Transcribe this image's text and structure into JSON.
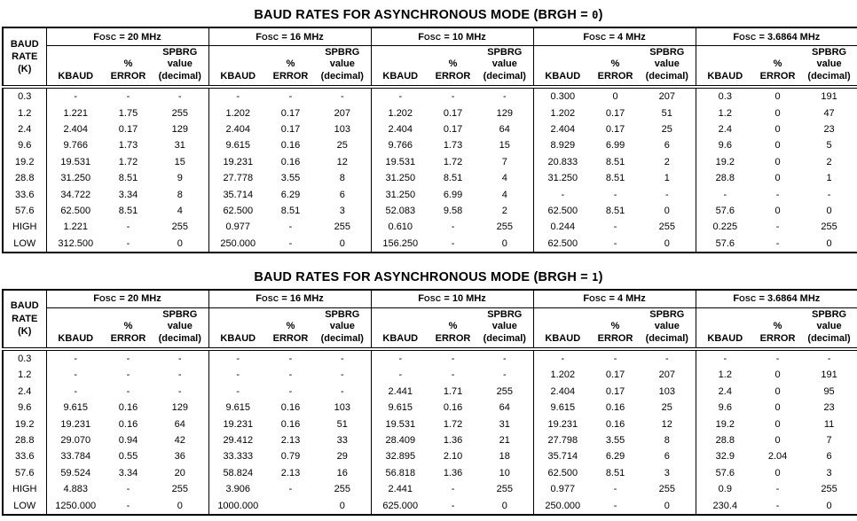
{
  "tables": [
    {
      "id": "brgh0",
      "title_main": "BAUD RATES FOR ASYNCHRONOUS MODE (BRGH = ",
      "title_value": "0",
      "title_close": ")",
      "corner_header": "BAUD\nRATE\n(K)",
      "group_headers": [
        "FOSC = 20 MHz",
        "FOSC = 16 MHz",
        "FOSC = 10 MHz",
        "FOSC = 4 MHz",
        "FOSC = 3.6864 MHz"
      ],
      "sub_headers": [
        "KBAUD",
        "%\nERROR",
        "SPBRG\nvalue\n(decimal)"
      ],
      "rows": [
        {
          "baud": "0.3",
          "cells": [
            "-",
            "-",
            "-",
            "-",
            "-",
            "-",
            "-",
            "-",
            "-",
            "0.300",
            "0",
            "207",
            "0.3",
            "0",
            "191"
          ]
        },
        {
          "baud": "1.2",
          "cells": [
            "1.221",
            "1.75",
            "255",
            "1.202",
            "0.17",
            "207",
            "1.202",
            "0.17",
            "129",
            "1.202",
            "0.17",
            "51",
            "1.2",
            "0",
            "47"
          ]
        },
        {
          "baud": "2.4",
          "cells": [
            "2.404",
            "0.17",
            "129",
            "2.404",
            "0.17",
            "103",
            "2.404",
            "0.17",
            "64",
            "2.404",
            "0.17",
            "25",
            "2.4",
            "0",
            "23"
          ]
        },
        {
          "baud": "9.6",
          "cells": [
            "9.766",
            "1.73",
            "31",
            "9.615",
            "0.16",
            "25",
            "9.766",
            "1.73",
            "15",
            "8.929",
            "6.99",
            "6",
            "9.6",
            "0",
            "5"
          ]
        },
        {
          "baud": "19.2",
          "cells": [
            "19.531",
            "1.72",
            "15",
            "19.231",
            "0.16",
            "12",
            "19.531",
            "1.72",
            "7",
            "20.833",
            "8.51",
            "2",
            "19.2",
            "0",
            "2"
          ]
        },
        {
          "baud": "28.8",
          "cells": [
            "31.250",
            "8.51",
            "9",
            "27.778",
            "3.55",
            "8",
            "31.250",
            "8.51",
            "4",
            "31.250",
            "8.51",
            "1",
            "28.8",
            "0",
            "1"
          ]
        },
        {
          "baud": "33.6",
          "cells": [
            "34.722",
            "3.34",
            "8",
            "35.714",
            "6.29",
            "6",
            "31.250",
            "6.99",
            "4",
            "-",
            "-",
            "-",
            "-",
            "-",
            "-"
          ]
        },
        {
          "baud": "57.6",
          "cells": [
            "62.500",
            "8.51",
            "4",
            "62.500",
            "8.51",
            "3",
            "52.083",
            "9.58",
            "2",
            "62.500",
            "8.51",
            "0",
            "57.6",
            "0",
            "0"
          ]
        },
        {
          "baud": "HIGH",
          "cells": [
            "1.221",
            "-",
            "255",
            "0.977",
            "-",
            "255",
            "0.610",
            "-",
            "255",
            "0.244",
            "-",
            "255",
            "0.225",
            "-",
            "255"
          ]
        },
        {
          "baud": "LOW",
          "cells": [
            "312.500",
            "-",
            "0",
            "250.000",
            "-",
            "0",
            "156.250",
            "-",
            "0",
            "62.500",
            "-",
            "0",
            "57.6",
            "-",
            "0"
          ]
        }
      ]
    },
    {
      "id": "brgh1",
      "title_main": "BAUD RATES FOR ASYNCHRONOUS MODE (BRGH = ",
      "title_value": "1",
      "title_close": ")",
      "corner_header": "BAUD\nRATE\n(K)",
      "group_headers": [
        "FOSC = 20 MHz",
        "FOSC = 16 MHz",
        "FOSC = 10 MHz",
        "FOSC = 4 MHz",
        "FOSC = 3.6864 MHz"
      ],
      "sub_headers": [
        "KBAUD",
        "%\nERROR",
        "SPBRG\nvalue\n(decimal)"
      ],
      "rows": [
        {
          "baud": "0.3",
          "cells": [
            "-",
            "-",
            "-",
            "-",
            "-",
            "-",
            "-",
            "-",
            "-",
            "-",
            "-",
            "-",
            "-",
            "-",
            "-"
          ]
        },
        {
          "baud": "1.2",
          "cells": [
            "-",
            "-",
            "-",
            "-",
            "-",
            "-",
            "-",
            "-",
            "-",
            "1.202",
            "0.17",
            "207",
            "1.2",
            "0",
            "191"
          ]
        },
        {
          "baud": "2.4",
          "cells": [
            "-",
            "-",
            "-",
            "-",
            "-",
            "-",
            "2.441",
            "1.71",
            "255",
            "2.404",
            "0.17",
            "103",
            "2.4",
            "0",
            "95"
          ]
        },
        {
          "baud": "9.6",
          "cells": [
            "9.615",
            "0.16",
            "129",
            "9.615",
            "0.16",
            "103",
            "9.615",
            "0.16",
            "64",
            "9.615",
            "0.16",
            "25",
            "9.6",
            "0",
            "23"
          ]
        },
        {
          "baud": "19.2",
          "cells": [
            "19.231",
            "0.16",
            "64",
            "19.231",
            "0.16",
            "51",
            "19.531",
            "1.72",
            "31",
            "19.231",
            "0.16",
            "12",
            "19.2",
            "0",
            "11"
          ]
        },
        {
          "baud": "28.8",
          "cells": [
            "29.070",
            "0.94",
            "42",
            "29.412",
            "2.13",
            "33",
            "28.409",
            "1.36",
            "21",
            "27.798",
            "3.55",
            "8",
            "28.8",
            "0",
            "7"
          ]
        },
        {
          "baud": "33.6",
          "cells": [
            "33.784",
            "0.55",
            "36",
            "33.333",
            "0.79",
            "29",
            "32.895",
            "2.10",
            "18",
            "35.714",
            "6.29",
            "6",
            "32.9",
            "2.04",
            "6"
          ]
        },
        {
          "baud": "57.6",
          "cells": [
            "59.524",
            "3.34",
            "20",
            "58.824",
            "2.13",
            "16",
            "56.818",
            "1.36",
            "10",
            "62.500",
            "8.51",
            "3",
            "57.6",
            "0",
            "3"
          ]
        },
        {
          "baud": "HIGH",
          "cells": [
            "4.883",
            "-",
            "255",
            "3.906",
            "-",
            "255",
            "2.441",
            "-",
            "255",
            "0.977",
            "-",
            "255",
            "0.9",
            "-",
            "255"
          ]
        },
        {
          "baud": "LOW",
          "cells": [
            "1250.000",
            "-",
            "0",
            "1000.000",
            "",
            "0",
            "625.000",
            "-",
            "0",
            "250.000",
            "-",
            "0",
            "230.4",
            "-",
            "0"
          ]
        }
      ]
    }
  ]
}
